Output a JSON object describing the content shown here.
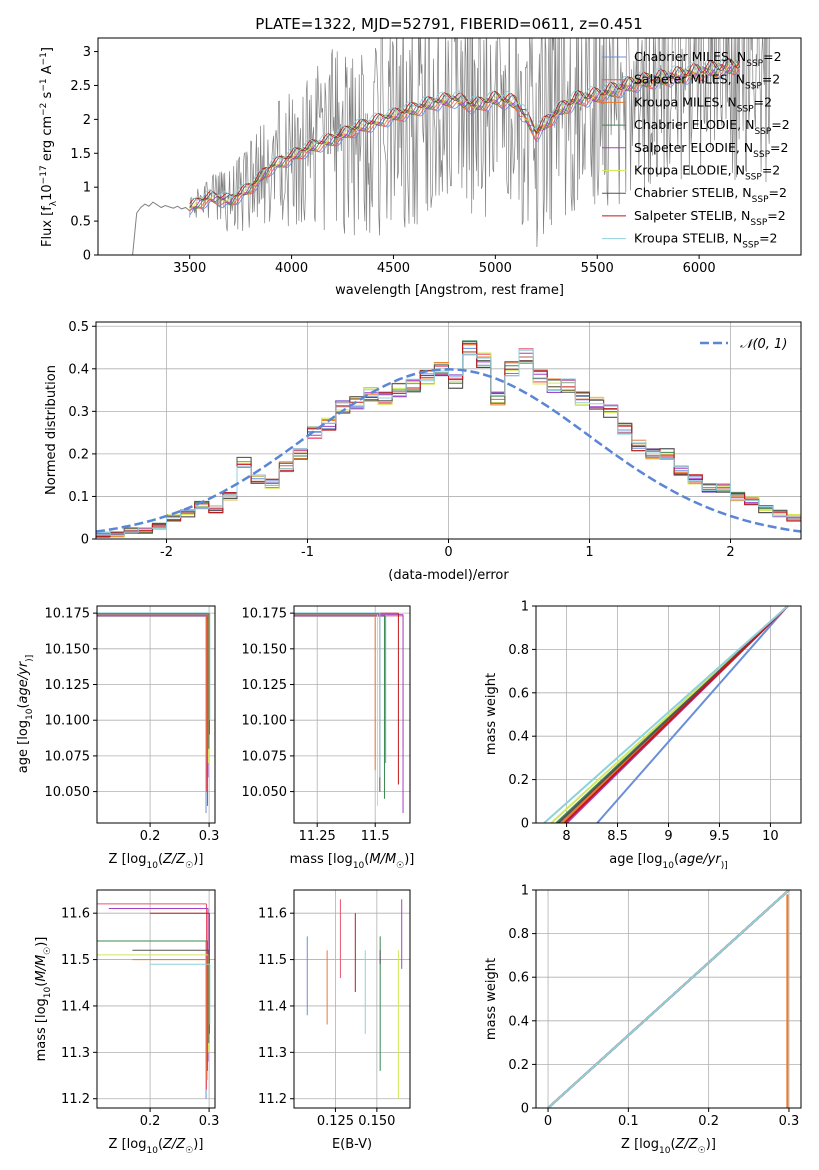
{
  "figure": {
    "title": "PLATE=1322, MJD=52791, FIBERID=0611, z=0.451"
  },
  "series_styles": [
    {
      "name": "Chabrier MILES, N_SSP=2",
      "label_main": "Chabrier MILES, N",
      "label_sub": "SSP",
      "label_tail": "=2",
      "color": "#6a8fd8"
    },
    {
      "name": "Salpeter MILES, N_SSP=2",
      "label_main": "Salpeter MILES, N",
      "label_sub": "SSP",
      "label_tail": "=2",
      "color": "#e9546e"
    },
    {
      "name": "Kroupa MILES, N_SSP=2",
      "label_main": "Kroupa MILES, N",
      "label_sub": "SSP",
      "label_tail": "=2",
      "color": "#ee7a2a"
    },
    {
      "name": "Chabrier ELODIE, N_SSP=2",
      "label_main": "Chabrier ELODIE, N",
      "label_sub": "SSP",
      "label_tail": "=2",
      "color": "#3a8a4f"
    },
    {
      "name": "Salpeter ELODIE, N_SSP=2",
      "label_main": "Salpeter ELODIE, N",
      "label_sub": "SSP",
      "label_tail": "=2",
      "color": "#a73fc6"
    },
    {
      "name": "Kroupa ELODIE, N_SSP=2",
      "label_main": "Kroupa ELODIE, N",
      "label_sub": "SSP",
      "label_tail": "=2",
      "color": "#d4e85c"
    },
    {
      "name": "Chabrier STELIB, N_SSP=2",
      "label_main": "Chabrier STELIB, N",
      "label_sub": "SSP",
      "label_tail": "=2",
      "color": "#555555"
    },
    {
      "name": "Salpeter STELIB, N_SSP=2",
      "label_main": "Salpeter STELIB, N",
      "label_sub": "SSP",
      "label_tail": "=2",
      "color": "#c01818"
    },
    {
      "name": "Kroupa STELIB, N_SSP=2",
      "label_main": "Kroupa STELIB, N",
      "label_sub": "SSP",
      "label_tail": "=2",
      "color": "#8fd0dc"
    }
  ],
  "chart_data": [
    {
      "id": "spectrum",
      "type": "line",
      "xlabel": "wavelength [Angstrom, rest frame]",
      "ylabel": "Flux [f_λ 10^-17 erg cm^-2 s^-1 A^-1]",
      "ylabel_parts": [
        "Flux [f",
        "λ",
        "10",
        "−17",
        " erg cm",
        "−2",
        " s",
        "−1",
        " A",
        "−1",
        "]"
      ],
      "xlim": [
        3050,
        6500
      ],
      "ylim": [
        0,
        3.2
      ],
      "xticks": [
        3500,
        4000,
        4500,
        5000,
        5500,
        6000
      ],
      "yticks": [
        0.0,
        0.5,
        1.0,
        1.5,
        2.0,
        2.5,
        3.0
      ],
      "grid": false,
      "legend": "upper right",
      "data_color": "#808080",
      "model_x": [
        3500,
        3600,
        3700,
        3800,
        3900,
        4000,
        4100,
        4200,
        4300,
        4400,
        4500,
        4600,
        4700,
        4800,
        4900,
        5000,
        5100,
        5200,
        5300,
        5400,
        5500,
        5600,
        5700,
        5800,
        5900,
        6000,
        6100,
        6200
      ],
      "model_y": [
        0.7,
        0.85,
        0.8,
        1.0,
        1.3,
        1.45,
        1.6,
        1.7,
        1.85,
        1.95,
        2.05,
        2.15,
        2.25,
        2.3,
        2.2,
        2.3,
        2.25,
        1.8,
        2.1,
        2.3,
        2.35,
        2.45,
        2.55,
        2.6,
        2.65,
        2.7,
        2.75,
        2.8
      ],
      "data_x": [
        3220,
        3240,
        3260,
        3280,
        3300,
        3320,
        3340,
        3360,
        3380,
        3400,
        3420,
        3440,
        3460,
        3480,
        3500
      ],
      "data_y": [
        0.0,
        0.62,
        0.7,
        0.75,
        0.72,
        0.78,
        0.74,
        0.7,
        0.73,
        0.71,
        0.69,
        0.72,
        0.68,
        0.7,
        0.65
      ]
    },
    {
      "id": "residuals",
      "type": "line",
      "xlabel": "(data-model)/error",
      "ylabel": "Normed distribution",
      "xlim": [
        -2.5,
        2.5
      ],
      "ylim": [
        0,
        0.51
      ],
      "xticks": [
        -2,
        -1,
        0,
        1,
        2
      ],
      "yticks": [
        0.0,
        0.1,
        0.2,
        0.3,
        0.4,
        0.5
      ],
      "grid": true,
      "legend": "upper right",
      "reference_curve": {
        "name": "𝒩(0, 1)",
        "color": "#5b86d6",
        "mean": 0,
        "sigma": 1
      },
      "hist_edges": [
        -2.5,
        -2.4,
        -2.3,
        -2.2,
        -2.1,
        -2.0,
        -1.9,
        -1.8,
        -1.7,
        -1.6,
        -1.5,
        -1.4,
        -1.3,
        -1.2,
        -1.1,
        -1.0,
        -0.9,
        -0.8,
        -0.7,
        -0.6,
        -0.5,
        -0.4,
        -0.3,
        -0.2,
        -0.1,
        0.0,
        0.1,
        0.2,
        0.3,
        0.4,
        0.5,
        0.6,
        0.7,
        0.8,
        0.9,
        1.0,
        1.1,
        1.2,
        1.3,
        1.4,
        1.5,
        1.6,
        1.7,
        1.8,
        1.9,
        2.0,
        2.1,
        2.2,
        2.3,
        2.4,
        2.5
      ],
      "hist_values": [
        0.01,
        0.01,
        0.02,
        0.02,
        0.03,
        0.05,
        0.06,
        0.08,
        0.07,
        0.1,
        0.18,
        0.14,
        0.13,
        0.17,
        0.2,
        0.25,
        0.27,
        0.31,
        0.32,
        0.34,
        0.33,
        0.35,
        0.36,
        0.38,
        0.4,
        0.37,
        0.45,
        0.42,
        0.33,
        0.4,
        0.43,
        0.38,
        0.36,
        0.36,
        0.33,
        0.32,
        0.3,
        0.26,
        0.22,
        0.2,
        0.2,
        0.16,
        0.14,
        0.12,
        0.12,
        0.1,
        0.09,
        0.07,
        0.06,
        0.05
      ]
    },
    {
      "id": "age-vs-Z",
      "type": "line",
      "xlabel": "Z [log10(Z/Z☉)]",
      "xlabel_parts": [
        "Z [log",
        "10",
        "(",
        "Z/Z",
        "☉",
        ")]"
      ],
      "ylabel": "age [log10(age/yr)]",
      "ylabel_parts": [
        "age  [log",
        "10",
        "(",
        "age/yr",
        ")]"
      ],
      "xlim": [
        0.11,
        0.31
      ],
      "ylim": [
        10.028,
        10.18
      ],
      "xticks": [
        0.2,
        0.3
      ],
      "yticks": [
        10.05,
        10.075,
        10.1,
        10.125,
        10.15,
        10.175
      ],
      "ytick_labels": [
        "10.050",
        "10.075",
        "10.100",
        "10.125",
        "10.150",
        "10.175"
      ],
      "grid": true,
      "horizontal_y": 10.174,
      "vertical_x": 0.298,
      "vertical_bottoms": [
        10.035,
        10.05,
        10.075,
        10.04,
        10.06,
        10.07,
        10.08,
        10.09,
        10.1
      ]
    },
    {
      "id": "age-vs-mass",
      "type": "line",
      "xlabel": "mass [log10(M/M☉)]",
      "xlabel_parts": [
        "mass [log",
        "10",
        "(",
        "M/M",
        "☉",
        ")]"
      ],
      "xlim": [
        11.15,
        11.65
      ],
      "ylim": [
        10.028,
        10.18
      ],
      "xticks": [
        11.25,
        11.5
      ],
      "yticks": [
        10.05,
        10.075,
        10.1,
        10.125,
        10.15,
        10.175
      ],
      "ytick_labels": [
        "10.050",
        "10.075",
        "10.100",
        "10.125",
        "10.150",
        "10.175"
      ],
      "grid": true,
      "horizontal_y": 10.174,
      "vertical_x": [
        11.545,
        11.62,
        11.5,
        11.54,
        11.62,
        11.51,
        11.52,
        11.6,
        11.52
      ],
      "vertical_bottoms": [
        10.07,
        10.08,
        10.065,
        10.045,
        10.035,
        10.04,
        10.05,
        10.055,
        10.06
      ]
    },
    {
      "id": "cumulative-age",
      "type": "line",
      "xlabel": "age [log10(age/yr)]",
      "xlabel_parts": [
        "age  [log",
        "10",
        "(",
        "age/yr",
        ")]"
      ],
      "ylabel": "mass weight",
      "xlim": [
        7.7,
        10.3
      ],
      "ylim": [
        0,
        1
      ],
      "xticks": [
        8.0,
        8.5,
        9.0,
        9.5,
        10.0
      ],
      "yticks": [
        0.0,
        0.2,
        0.4,
        0.6,
        0.8,
        1.0
      ],
      "grid": true,
      "line_start_x": [
        8.3,
        8.0,
        7.95,
        7.9,
        8.0,
        7.85,
        7.92,
        7.98,
        7.78
      ],
      "line_end_x": 10.17
    },
    {
      "id": "mass-vs-Z",
      "type": "line",
      "xlabel": "Z [log10(Z/Z☉)]",
      "xlabel_parts": [
        "Z [log",
        "10",
        "(",
        "Z/Z",
        "☉",
        ")]"
      ],
      "ylabel": "mass [log10(M/M☉)]",
      "ylabel_parts": [
        "mass [log",
        "10",
        "(",
        "M/M",
        "☉",
        ")]"
      ],
      "xlim": [
        0.11,
        0.31
      ],
      "ylim": [
        11.18,
        11.65
      ],
      "xticks": [
        0.2,
        0.3
      ],
      "yticks": [
        11.2,
        11.3,
        11.4,
        11.5,
        11.6
      ],
      "grid": true,
      "horizontal_y": [
        11.54,
        11.62,
        11.5,
        11.54,
        11.61,
        11.51,
        11.52,
        11.6,
        11.49
      ],
      "horizontal_x0": [
        0.15,
        0.11,
        0.17,
        0.11,
        0.13,
        0.11,
        0.17,
        0.2,
        0.2
      ],
      "vertical_x": 0.298
    },
    {
      "id": "mass-vs-ebv",
      "type": "line",
      "xlabel": "E(B-V)",
      "xlim": [
        0.1,
        0.17
      ],
      "ylim": [
        11.18,
        11.65
      ],
      "xticks": [
        0.125,
        0.15
      ],
      "xtick_labels": [
        "0.125",
        "0.150"
      ],
      "yticks": [
        11.2,
        11.3,
        11.4,
        11.5,
        11.6
      ],
      "grid": true,
      "segments_x": [
        0.108,
        0.128,
        0.12,
        0.152,
        0.165,
        0.163,
        0.152,
        0.137,
        0.143
      ],
      "segments_y0": [
        11.38,
        11.46,
        11.36,
        11.26,
        11.48,
        11.2,
        11.49,
        11.43,
        11.34
      ],
      "segments_y1": [
        11.55,
        11.63,
        11.52,
        11.55,
        11.63,
        11.52,
        11.52,
        11.6,
        11.52
      ]
    },
    {
      "id": "cumulative-Z",
      "type": "line",
      "xlabel": "Z [log10(Z/Z☉)]",
      "xlabel_parts": [
        "Z [log",
        "10",
        "(",
        "Z/Z",
        "☉",
        ")]"
      ],
      "ylabel": "mass weight",
      "xlim": [
        -0.015,
        0.315
      ],
      "ylim": [
        0,
        1
      ],
      "xticks": [
        0.0,
        0.1,
        0.2,
        0.3
      ],
      "yticks": [
        0.0,
        0.2,
        0.4,
        0.6,
        0.8,
        1.0
      ],
      "grid": true,
      "diagonal_from": [
        0.0,
        0.0
      ],
      "diagonal_to": [
        0.3,
        1.0
      ],
      "step_x": 0.298
    }
  ]
}
